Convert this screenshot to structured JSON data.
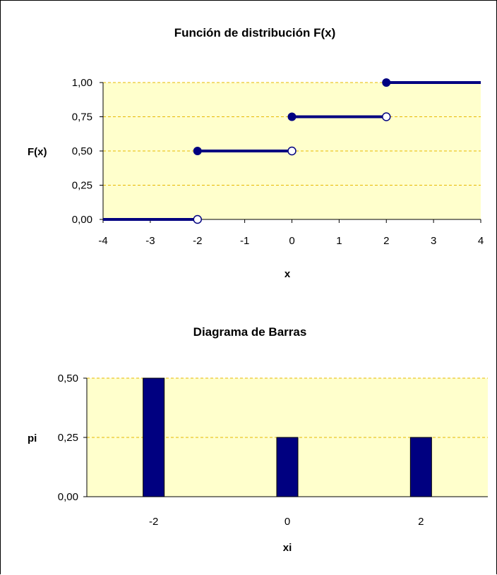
{
  "colors": {
    "plot_bg": "#FFFFCC",
    "grid": "#E6B800",
    "series": "#000080"
  },
  "chart_data": [
    {
      "type": "line",
      "title": "Función de distribución F(x)",
      "xlabel": "x",
      "ylabel": "F(x)",
      "xlim": [
        -4,
        4
      ],
      "ylim": [
        0,
        1
      ],
      "x_ticks": [
        -4,
        -3,
        -2,
        -1,
        0,
        1,
        2,
        3,
        4
      ],
      "y_ticks": [
        "0,00",
        "0,25",
        "0,50",
        "0,75",
        "1,00"
      ],
      "y_tick_values": [
        0,
        0.25,
        0.5,
        0.75,
        1
      ],
      "grid": true,
      "series": [
        {
          "steps": [
            {
              "x_start": -4,
              "x_end": -2,
              "y": 0,
              "start_closed": false,
              "end_open": true
            },
            {
              "x_start": -2,
              "x_end": 0,
              "y": 0.5,
              "start_closed": true,
              "end_open": true
            },
            {
              "x_start": 0,
              "x_end": 2,
              "y": 0.75,
              "start_closed": true,
              "end_open": true
            },
            {
              "x_start": 2,
              "x_end": 4,
              "y": 1,
              "start_closed": true,
              "end_open": false
            }
          ]
        }
      ]
    },
    {
      "type": "bar",
      "title": "Diagrama de Barras",
      "xlabel": "xi",
      "ylabel": "pi",
      "categories": [
        "-2",
        "0",
        "2"
      ],
      "values": [
        0.5,
        0.25,
        0.25
      ],
      "ylim": [
        0,
        0.5
      ],
      "y_ticks": [
        "0,00",
        "0,25",
        "0,50"
      ],
      "y_tick_values": [
        0,
        0.25,
        0.5
      ],
      "grid": true
    }
  ]
}
